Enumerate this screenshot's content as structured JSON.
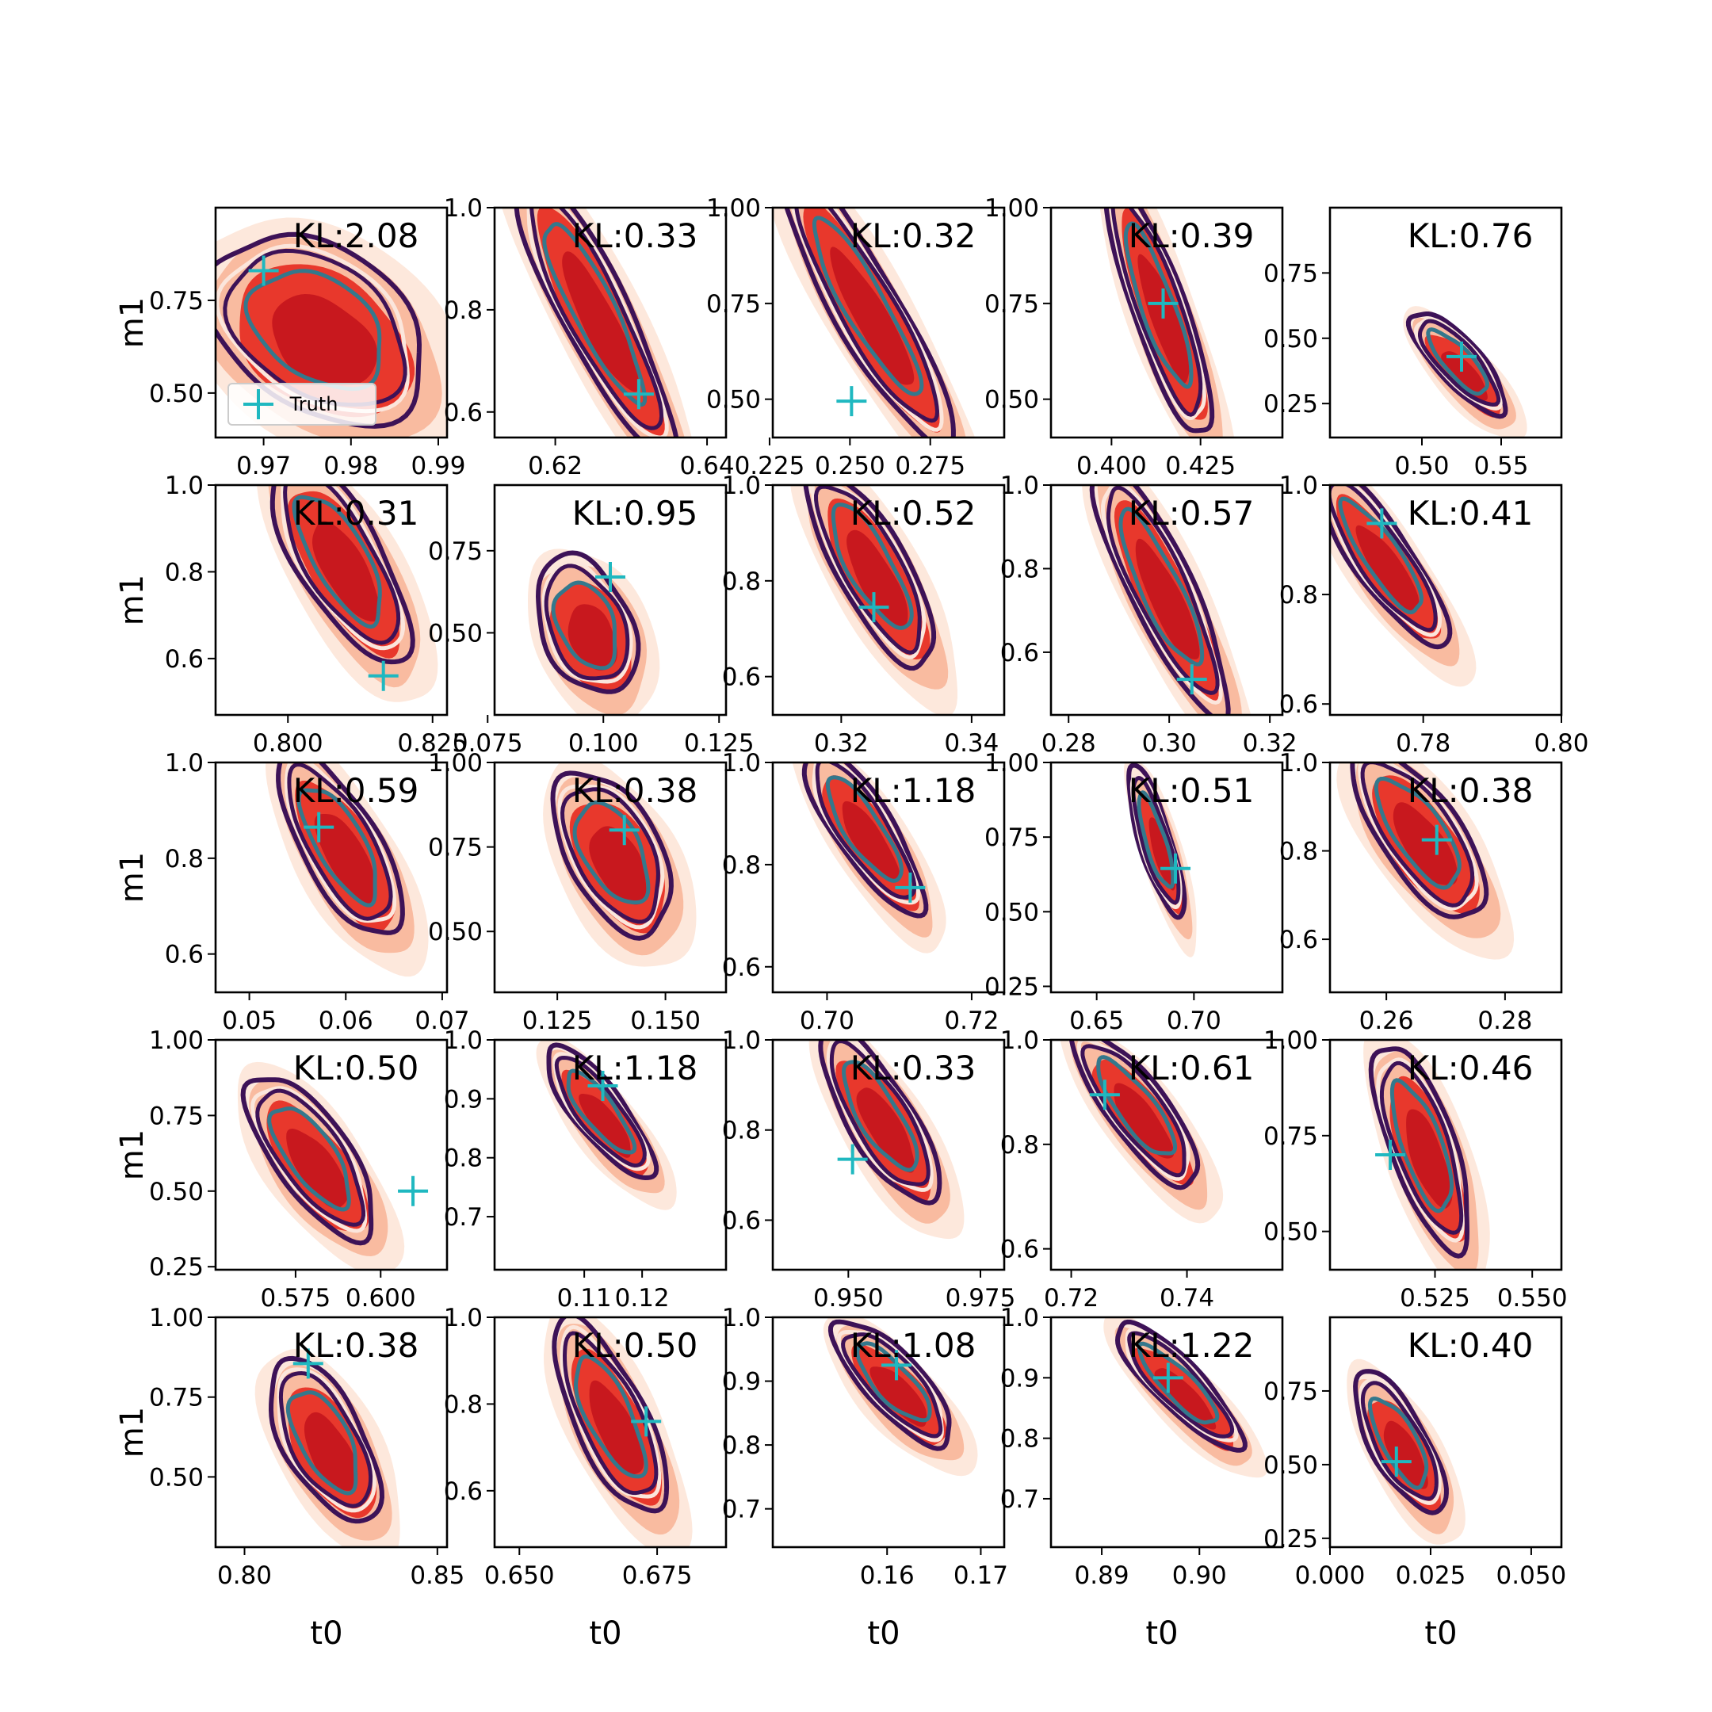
{
  "figure": {
    "xlabel": "t0",
    "ylabel": "m1",
    "legend_label": "Truth",
    "kl_prefix": "KL:",
    "colors": {
      "fill_levels": [
        "#fde8dc",
        "#f9bba0",
        "#e8382c",
        "#c8181e"
      ],
      "outer_contour": "#3d1257",
      "middle_contour": "#fbe6dc",
      "inner_contour": "#34788c",
      "truth_marker": "#1fb8c0"
    }
  },
  "chart_data": [
    {
      "type": "contour",
      "row": 1,
      "col": 1,
      "kl": "2.08",
      "xlim": [
        0.9645,
        0.991
      ],
      "ylim": [
        0.38,
        1.0
      ],
      "xticks": [
        {
          "v": 0.97,
          "t": "0.97"
        },
        {
          "v": 0.98,
          "t": "0.98"
        },
        {
          "v": 0.99,
          "t": "0.99"
        }
      ],
      "yticks": [
        {
          "v": 0.5,
          "t": "0.50"
        },
        {
          "v": 0.75,
          "t": "0.75"
        }
      ],
      "center": [
        0.9765,
        0.66
      ],
      "spread": [
        0.0083,
        0.17
      ],
      "rho": -0.35,
      "truth": [
        0.97,
        0.83
      ],
      "legend": true
    },
    {
      "type": "contour",
      "row": 1,
      "col": 2,
      "kl": "0.33",
      "xlim": [
        0.612,
        0.6425
      ],
      "ylim": [
        0.55,
        1.0
      ],
      "xticks": [
        {
          "v": 0.62,
          "t": "0.62"
        },
        {
          "v": 0.64,
          "t": "0.64"
        }
      ],
      "yticks": [
        {
          "v": 0.6,
          "t": "0.6"
        },
        {
          "v": 0.8,
          "t": "0.8"
        },
        {
          "v": 1.0,
          "t": "1.0"
        }
      ],
      "center": [
        0.6255,
        0.79
      ],
      "spread": [
        0.007,
        0.19
      ],
      "rho": -0.88,
      "truth": [
        0.631,
        0.635
      ]
    },
    {
      "type": "contour",
      "row": 1,
      "col": 3,
      "kl": "0.32",
      "xlim": [
        0.226,
        0.298
      ],
      "ylim": [
        0.4,
        1.0
      ],
      "xticks": [
        {
          "v": 0.225,
          "t": "0.225"
        },
        {
          "v": 0.25,
          "t": "0.250"
        },
        {
          "v": 0.275,
          "t": "0.275"
        }
      ],
      "yticks": [
        {
          "v": 0.5,
          "t": "0.50"
        },
        {
          "v": 0.75,
          "t": "0.75"
        },
        {
          "v": 1.0,
          "t": "1.00"
        }
      ],
      "center": [
        0.256,
        0.73
      ],
      "spread": [
        0.018,
        0.25
      ],
      "rho": -0.9,
      "truth": [
        0.2505,
        0.495
      ]
    },
    {
      "type": "contour",
      "row": 1,
      "col": 4,
      "kl": "0.39",
      "xlim": [
        0.383,
        0.448
      ],
      "ylim": [
        0.4,
        1.0
      ],
      "xticks": [
        {
          "v": 0.4,
          "t": "0.400"
        },
        {
          "v": 0.425,
          "t": "0.425"
        }
      ],
      "yticks": [
        {
          "v": 0.5,
          "t": "0.50"
        },
        {
          "v": 0.75,
          "t": "0.75"
        },
        {
          "v": 1.0,
          "t": "1.00"
        }
      ],
      "center": [
        0.414,
        0.73
      ],
      "spread": [
        0.01,
        0.23
      ],
      "rho": -0.85,
      "truth": [
        0.4145,
        0.75
      ]
    },
    {
      "type": "contour",
      "row": 1,
      "col": 5,
      "kl": "0.76",
      "xlim": [
        0.442,
        0.588
      ],
      "ylim": [
        0.12,
        1.0
      ],
      "xticks": [
        {
          "v": 0.5,
          "t": "0.50"
        },
        {
          "v": 0.55,
          "t": "0.55"
        }
      ],
      "yticks": [
        {
          "v": 0.25,
          "t": "0.25"
        },
        {
          "v": 0.5,
          "t": "0.50"
        },
        {
          "v": 0.75,
          "t": "0.75"
        }
      ],
      "center": [
        0.525,
        0.39
      ],
      "spread": [
        0.02,
        0.13
      ],
      "rho": -0.8,
      "truth": [
        0.525,
        0.43
      ]
    },
    {
      "type": "contour",
      "row": 2,
      "col": 1,
      "kl": "0.31",
      "xlim": [
        0.7875,
        0.8275
      ],
      "ylim": [
        0.47,
        1.0
      ],
      "xticks": [
        {
          "v": 0.8,
          "t": "0.800"
        },
        {
          "v": 0.825,
          "t": "0.825"
        }
      ],
      "yticks": [
        {
          "v": 0.6,
          "t": "0.6"
        },
        {
          "v": 0.8,
          "t": "0.8"
        },
        {
          "v": 1.0,
          "t": "1.0"
        }
      ],
      "center": [
        0.8095,
        0.82
      ],
      "spread": [
        0.008,
        0.16
      ],
      "rho": -0.72,
      "truth": [
        0.8165,
        0.56
      ]
    },
    {
      "type": "contour",
      "row": 2,
      "col": 2,
      "kl": "0.95",
      "xlim": [
        0.0765,
        0.1265
      ],
      "ylim": [
        0.25,
        0.95
      ],
      "xticks": [
        {
          "v": 0.075,
          "t": "0.075"
        },
        {
          "v": 0.1,
          "t": "0.100"
        },
        {
          "v": 0.125,
          "t": "0.125"
        }
      ],
      "yticks": [
        {
          "v": 0.5,
          "t": "0.50"
        },
        {
          "v": 0.75,
          "t": "0.75"
        }
      ],
      "center": [
        0.097,
        0.51
      ],
      "spread": [
        0.0072,
        0.14
      ],
      "rho": -0.35,
      "truth": [
        0.1015,
        0.67
      ]
    },
    {
      "type": "contour",
      "row": 2,
      "col": 3,
      "kl": "0.52",
      "xlim": [
        0.3095,
        0.345
      ],
      "ylim": [
        0.52,
        1.0
      ],
      "xticks": [
        {
          "v": 0.32,
          "t": "0.32"
        },
        {
          "v": 0.34,
          "t": "0.34"
        }
      ],
      "yticks": [
        {
          "v": 0.6,
          "t": "0.6"
        },
        {
          "v": 0.8,
          "t": "0.8"
        },
        {
          "v": 1.0,
          "t": "1.0"
        }
      ],
      "center": [
        0.325,
        0.82
      ],
      "spread": [
        0.0065,
        0.14
      ],
      "rho": -0.78,
      "truth": [
        0.325,
        0.745
      ]
    },
    {
      "type": "contour",
      "row": 2,
      "col": 4,
      "kl": "0.57",
      "xlim": [
        0.2765,
        0.3225
      ],
      "ylim": [
        0.45,
        1.0
      ],
      "xticks": [
        {
          "v": 0.28,
          "t": "0.28"
        },
        {
          "v": 0.3,
          "t": "0.30"
        },
        {
          "v": 0.32,
          "t": "0.32"
        }
      ],
      "yticks": [
        {
          "v": 0.6,
          "t": "0.6"
        },
        {
          "v": 0.8,
          "t": "0.8"
        },
        {
          "v": 1.0,
          "t": "1.0"
        }
      ],
      "center": [
        0.299,
        0.74
      ],
      "spread": [
        0.0088,
        0.2
      ],
      "rho": -0.85,
      "truth": [
        0.3045,
        0.535
      ]
    },
    {
      "type": "contour",
      "row": 2,
      "col": 5,
      "kl": "0.41",
      "xlim": [
        0.7665,
        0.8
      ],
      "ylim": [
        0.58,
        1.0
      ],
      "xticks": [
        {
          "v": 0.78,
          "t": "0.78"
        },
        {
          "v": 0.8,
          "t": "0.80"
        }
      ],
      "yticks": [
        {
          "v": 0.6,
          "t": "0.6"
        },
        {
          "v": 0.8,
          "t": "0.8"
        },
        {
          "v": 1.0,
          "t": "1.0"
        }
      ],
      "center": [
        0.7745,
        0.86
      ],
      "spread": [
        0.0063,
        0.11
      ],
      "rho": -0.85,
      "truth": [
        0.774,
        0.93
      ]
    },
    {
      "type": "contour",
      "row": 3,
      "col": 1,
      "kl": "0.59",
      "xlim": [
        0.0465,
        0.0705
      ],
      "ylim": [
        0.52,
        1.0
      ],
      "xticks": [
        {
          "v": 0.05,
          "t": "0.05"
        },
        {
          "v": 0.06,
          "t": "0.06"
        },
        {
          "v": 0.07,
          "t": "0.07"
        }
      ],
      "yticks": [
        {
          "v": 0.6,
          "t": "0.6"
        },
        {
          "v": 0.8,
          "t": "0.8"
        },
        {
          "v": 1.0,
          "t": "1.0"
        }
      ],
      "center": [
        0.0597,
        0.82
      ],
      "spread": [
        0.0043,
        0.13
      ],
      "rho": -0.72,
      "truth": [
        0.0572,
        0.865
      ]
    },
    {
      "type": "contour",
      "row": 3,
      "col": 2,
      "kl": "0.38",
      "xlim": [
        0.1105,
        0.164
      ],
      "ylim": [
        0.32,
        1.0
      ],
      "xticks": [
        {
          "v": 0.125,
          "t": "0.125"
        },
        {
          "v": 0.15,
          "t": "0.150"
        }
      ],
      "yticks": [
        {
          "v": 0.5,
          "t": "0.50"
        },
        {
          "v": 0.75,
          "t": "0.75"
        },
        {
          "v": 1.0,
          "t": "1.00"
        }
      ],
      "center": [
        0.1385,
        0.72
      ],
      "spread": [
        0.009,
        0.16
      ],
      "rho": -0.5,
      "truth": [
        0.1405,
        0.8
      ]
    },
    {
      "type": "contour",
      "row": 3,
      "col": 3,
      "kl": "1.18",
      "xlim": [
        0.6925,
        0.7245
      ],
      "ylim": [
        0.55,
        1.0
      ],
      "xticks": [
        {
          "v": 0.7,
          "t": "0.70"
        },
        {
          "v": 0.72,
          "t": "0.72"
        }
      ],
      "yticks": [
        {
          "v": 0.6,
          "t": "0.6"
        },
        {
          "v": 0.8,
          "t": "0.8"
        },
        {
          "v": 1.0,
          "t": "1.0"
        }
      ],
      "center": [
        0.7055,
        0.86
      ],
      "spread": [
        0.0055,
        0.11
      ],
      "rho": -0.82,
      "truth": [
        0.7115,
        0.755
      ]
    },
    {
      "type": "contour",
      "row": 3,
      "col": 4,
      "kl": "0.51",
      "xlim": [
        0.6265,
        0.7455
      ],
      "ylim": [
        0.23,
        1.0
      ],
      "xticks": [
        {
          "v": 0.65,
          "t": "0.65"
        },
        {
          "v": 0.7,
          "t": "0.70"
        }
      ],
      "yticks": [
        {
          "v": 0.25,
          "t": "0.25"
        },
        {
          "v": 0.5,
          "t": "0.50"
        },
        {
          "v": 0.75,
          "t": "0.75"
        },
        {
          "v": 1.0,
          "t": "1.00"
        }
      ],
      "center": [
        0.682,
        0.72
      ],
      "spread": [
        0.0095,
        0.17
      ],
      "rho": -0.8,
      "truth": [
        0.6905,
        0.645
      ]
    },
    {
      "type": "contour",
      "row": 3,
      "col": 5,
      "kl": "0.38",
      "xlim": [
        0.2505,
        0.2895
      ],
      "ylim": [
        0.48,
        1.0
      ],
      "xticks": [
        {
          "v": 0.26,
          "t": "0.26"
        },
        {
          "v": 0.28,
          "t": "0.28"
        }
      ],
      "yticks": [
        {
          "v": 0.6,
          "t": "0.6"
        },
        {
          "v": 0.8,
          "t": "0.8"
        },
        {
          "v": 1.0,
          "t": "1.0"
        }
      ],
      "center": [
        0.266,
        0.83
      ],
      "spread": [
        0.0075,
        0.13
      ],
      "rho": -0.72,
      "truth": [
        0.2685,
        0.825
      ]
    },
    {
      "type": "contour",
      "row": 4,
      "col": 1,
      "kl": "0.50",
      "xlim": [
        0.5515,
        0.6195
      ],
      "ylim": [
        0.24,
        1.0
      ],
      "xticks": [
        {
          "v": 0.575,
          "t": "0.575"
        },
        {
          "v": 0.6,
          "t": "0.600"
        }
      ],
      "yticks": [
        {
          "v": 0.25,
          "t": "0.25"
        },
        {
          "v": 0.5,
          "t": "0.50"
        },
        {
          "v": 0.75,
          "t": "0.75"
        },
        {
          "v": 1.0,
          "t": "1.00"
        }
      ],
      "center": [
        0.5805,
        0.6
      ],
      "spread": [
        0.0125,
        0.18
      ],
      "rho": -0.72,
      "truth": [
        0.6095,
        0.5
      ]
    },
    {
      "type": "contour",
      "row": 4,
      "col": 2,
      "kl": "1.18",
      "xlim": [
        0.0945,
        0.1345
      ],
      "ylim": [
        0.61,
        1.0
      ],
      "xticks": [
        {
          "v": 0.11,
          "t": "0.11"
        },
        {
          "v": 0.12,
          "t": "0.12"
        }
      ],
      "yticks": [
        {
          "v": 0.7,
          "t": "0.7"
        },
        {
          "v": 0.8,
          "t": "0.8"
        },
        {
          "v": 0.9,
          "t": "0.9"
        },
        {
          "v": 1.0,
          "t": "1.0"
        }
      ],
      "center": [
        0.1132,
        0.87
      ],
      "spread": [
        0.0062,
        0.075
      ],
      "rho": -0.82,
      "truth": [
        0.1132,
        0.922
      ]
    },
    {
      "type": "contour",
      "row": 4,
      "col": 3,
      "kl": "0.33",
      "xlim": [
        0.9357,
        0.9795
      ],
      "ylim": [
        0.49,
        1.0
      ],
      "xticks": [
        {
          "v": 0.95,
          "t": "0.950"
        },
        {
          "v": 0.975,
          "t": "0.975"
        }
      ],
      "yticks": [
        {
          "v": 0.6,
          "t": "0.6"
        },
        {
          "v": 0.8,
          "t": "0.8"
        },
        {
          "v": 1.0,
          "t": "1.0"
        }
      ],
      "center": [
        0.9565,
        0.82
      ],
      "spread": [
        0.0075,
        0.13
      ],
      "rho": -0.78,
      "truth": [
        0.9508,
        0.735
      ]
    },
    {
      "type": "contour",
      "row": 4,
      "col": 4,
      "kl": "0.61",
      "xlim": [
        0.7165,
        0.7565
      ],
      "ylim": [
        0.56,
        1.0
      ],
      "xticks": [
        {
          "v": 0.72,
          "t": "0.72"
        },
        {
          "v": 0.74,
          "t": "0.74"
        }
      ],
      "yticks": [
        {
          "v": 0.6,
          "t": "0.6"
        },
        {
          "v": 0.8,
          "t": "0.8"
        },
        {
          "v": 1.0,
          "t": "1.0"
        }
      ],
      "center": [
        0.7318,
        0.86
      ],
      "spread": [
        0.0072,
        0.1
      ],
      "rho": -0.82,
      "truth": [
        0.7258,
        0.895
      ]
    },
    {
      "type": "contour",
      "row": 4,
      "col": 5,
      "kl": "0.46",
      "xlim": [
        0.498,
        0.5575
      ],
      "ylim": [
        0.4,
        1.0
      ],
      "xticks": [
        {
          "v": 0.525,
          "t": "0.525"
        },
        {
          "v": 0.55,
          "t": "0.550"
        }
      ],
      "yticks": [
        {
          "v": 0.5,
          "t": "0.50"
        },
        {
          "v": 0.75,
          "t": "0.75"
        },
        {
          "v": 1.0,
          "t": "1.00"
        }
      ],
      "center": [
        0.5225,
        0.71
      ],
      "spread": [
        0.0082,
        0.18
      ],
      "rho": -0.7,
      "truth": [
        0.5135,
        0.7
      ]
    },
    {
      "type": "contour",
      "row": 5,
      "col": 1,
      "kl": "0.38",
      "xlim": [
        0.7925,
        0.8525
      ],
      "ylim": [
        0.28,
        1.0
      ],
      "xticks": [
        {
          "v": 0.8,
          "t": "0.80"
        },
        {
          "v": 0.85,
          "t": "0.85"
        }
      ],
      "yticks": [
        {
          "v": 0.5,
          "t": "0.50"
        },
        {
          "v": 0.75,
          "t": "0.75"
        },
        {
          "v": 1.0,
          "t": "1.00"
        }
      ],
      "center": [
        0.8215,
        0.6
      ],
      "spread": [
        0.0095,
        0.17
      ],
      "rho": -0.6,
      "truth": [
        0.8165,
        0.855
      ]
    },
    {
      "type": "contour",
      "row": 5,
      "col": 2,
      "kl": "0.50",
      "xlim": [
        0.6455,
        0.6875
      ],
      "ylim": [
        0.47,
        1.0
      ],
      "xticks": [
        {
          "v": 0.65,
          "t": "0.650"
        },
        {
          "v": 0.675,
          "t": "0.675"
        }
      ],
      "yticks": [
        {
          "v": 0.6,
          "t": "0.6"
        },
        {
          "v": 0.8,
          "t": "0.8"
        },
        {
          "v": 1.0,
          "t": "1.0"
        }
      ],
      "center": [
        0.667,
        0.76
      ],
      "spread": [
        0.0068,
        0.15
      ],
      "rho": -0.72,
      "truth": [
        0.673,
        0.76
      ]
    },
    {
      "type": "contour",
      "row": 5,
      "col": 3,
      "kl": "1.08",
      "xlim": [
        0.1478,
        0.1725
      ],
      "ylim": [
        0.64,
        1.0
      ],
      "xticks": [
        {
          "v": 0.16,
          "t": "0.16"
        },
        {
          "v": 0.17,
          "t": "0.17"
        }
      ],
      "yticks": [
        {
          "v": 0.7,
          "t": "0.7"
        },
        {
          "v": 0.8,
          "t": "0.8"
        },
        {
          "v": 0.9,
          "t": "0.9"
        },
        {
          "v": 1.0,
          "t": "1.0"
        }
      ],
      "center": [
        0.161,
        0.89
      ],
      "spread": [
        0.0042,
        0.065
      ],
      "rho": -0.78,
      "truth": [
        0.161,
        0.925
      ]
    },
    {
      "type": "contour",
      "row": 5,
      "col": 4,
      "kl": "1.22",
      "xlim": [
        0.8848,
        0.9085
      ],
      "ylim": [
        0.62,
        1.0
      ],
      "xticks": [
        {
          "v": 0.89,
          "t": "0.89"
        },
        {
          "v": 0.9,
          "t": "0.90"
        }
      ],
      "yticks": [
        {
          "v": 0.7,
          "t": "0.7"
        },
        {
          "v": 0.8,
          "t": "0.8"
        },
        {
          "v": 0.9,
          "t": "0.9"
        },
        {
          "v": 1.0,
          "t": "1.0"
        }
      ],
      "center": [
        0.8982,
        0.88
      ],
      "spread": [
        0.0043,
        0.07
      ],
      "rho": -0.86,
      "truth": [
        0.8968,
        0.9
      ]
    },
    {
      "type": "contour",
      "row": 5,
      "col": 5,
      "kl": "0.40",
      "xlim": [
        0.0,
        0.0575
      ],
      "ylim": [
        0.22,
        1.0
      ],
      "xticks": [
        {
          "v": 0.0,
          "t": "0.000"
        },
        {
          "v": 0.025,
          "t": "0.025"
        },
        {
          "v": 0.05,
          "t": "0.050"
        }
      ],
      "yticks": [
        {
          "v": 0.25,
          "t": "0.25"
        },
        {
          "v": 0.5,
          "t": "0.50"
        },
        {
          "v": 0.75,
          "t": "0.75"
        }
      ],
      "center": [
        0.018,
        0.56
      ],
      "spread": [
        0.0075,
        0.16
      ],
      "rho": -0.72,
      "truth": [
        0.0165,
        0.51
      ]
    }
  ]
}
